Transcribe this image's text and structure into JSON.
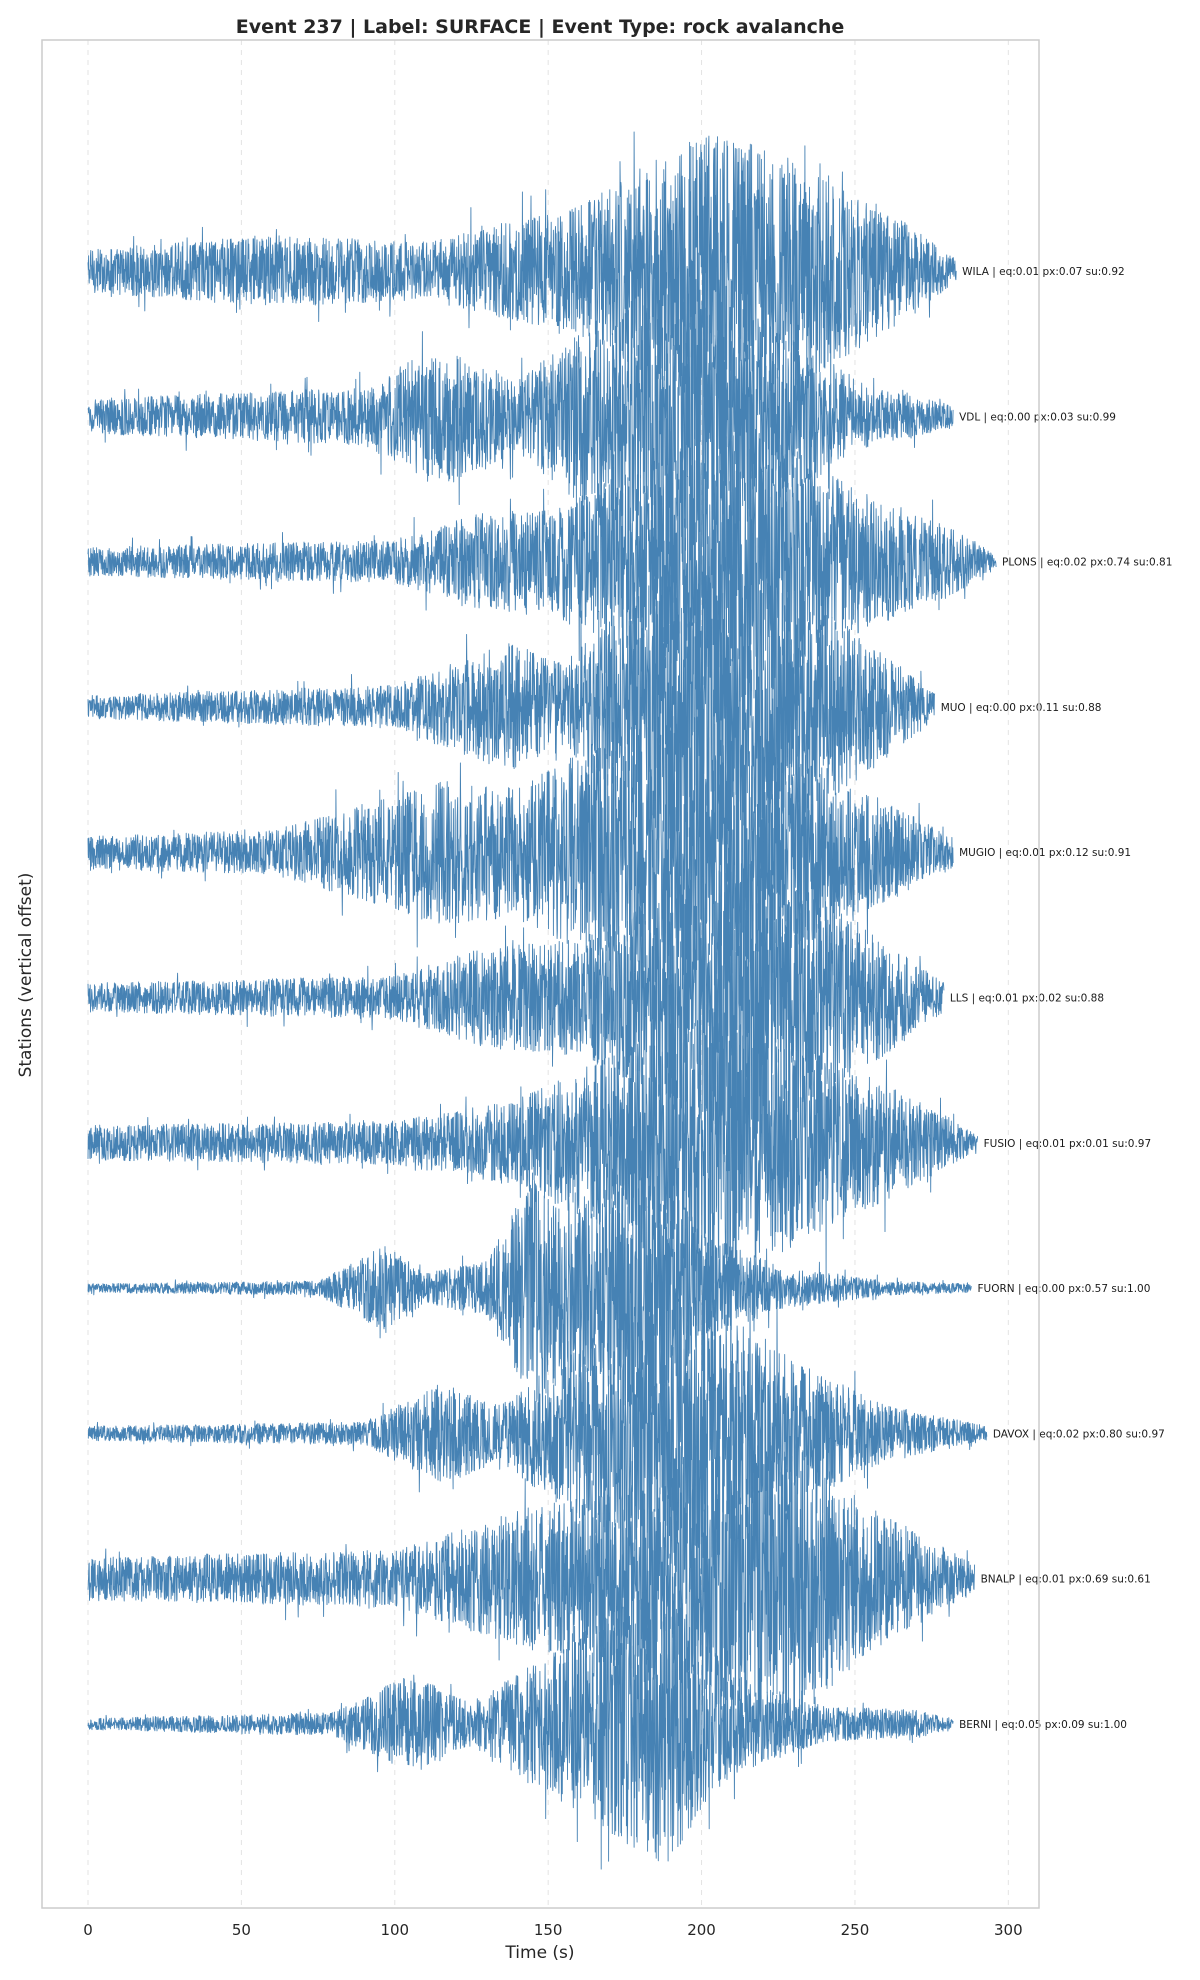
{
  "chart_data": {
    "type": "line",
    "title": "Event 237 | Label: SURFACE | Event Type: rock avalanche",
    "xlabel": "Time (s)",
    "ylabel": "Stations (vertical offset)",
    "xlim": [
      -15,
      310
    ],
    "xticks": [
      0,
      50,
      100,
      150,
      200,
      250,
      300
    ],
    "grid": "vertical dashed",
    "trace_color": "#4682b4",
    "series": [
      {
        "name": "WILA",
        "label": "WILA | eq:0.01 px:0.07 su:0.92",
        "x_end": 283,
        "envelope": [
          [
            0,
            0.15
          ],
          [
            60,
            0.25
          ],
          [
            110,
            0.2
          ],
          [
            160,
            0.45
          ],
          [
            203,
            1.0
          ],
          [
            230,
            0.8
          ],
          [
            262,
            0.4
          ],
          [
            283,
            0.08
          ]
        ]
      },
      {
        "name": "VDL",
        "label": "VDL | eq:0.00 px:0.03 su:0.99",
        "x_end": 282,
        "envelope": [
          [
            0,
            0.12
          ],
          [
            90,
            0.2
          ],
          [
            115,
            0.5
          ],
          [
            140,
            0.25
          ],
          [
            160,
            0.6
          ],
          [
            195,
            1.0
          ],
          [
            225,
            0.6
          ],
          [
            255,
            0.2
          ],
          [
            282,
            0.08
          ]
        ]
      },
      {
        "name": "PLONS",
        "label": "PLONS | eq:0.02 px:0.74 su:0.81",
        "x_end": 296,
        "envelope": [
          [
            0,
            0.1
          ],
          [
            100,
            0.15
          ],
          [
            128,
            0.35
          ],
          [
            150,
            0.35
          ],
          [
            180,
            0.7
          ],
          [
            215,
            1.0
          ],
          [
            250,
            0.5
          ],
          [
            280,
            0.25
          ],
          [
            296,
            0.05
          ]
        ]
      },
      {
        "name": "MUO",
        "label": "MUO | eq:0.00 px:0.11 su:0.88",
        "x_end": 276,
        "envelope": [
          [
            0,
            0.08
          ],
          [
            100,
            0.15
          ],
          [
            137,
            0.45
          ],
          [
            155,
            0.3
          ],
          [
            185,
            0.9
          ],
          [
            210,
            1.0
          ],
          [
            245,
            0.6
          ],
          [
            276,
            0.1
          ]
        ]
      },
      {
        "name": "MUGIO",
        "label": "MUGIO | eq:0.01 px:0.12 su:0.91",
        "x_end": 282,
        "envelope": [
          [
            0,
            0.12
          ],
          [
            60,
            0.15
          ],
          [
            115,
            0.5
          ],
          [
            140,
            0.45
          ],
          [
            170,
            0.8
          ],
          [
            200,
            1.0
          ],
          [
            230,
            0.7
          ],
          [
            260,
            0.35
          ],
          [
            282,
            0.1
          ]
        ]
      },
      {
        "name": "LLS",
        "label": "LLS | eq:0.01 px:0.02 su:0.88",
        "x_end": 279,
        "envelope": [
          [
            0,
            0.1
          ],
          [
            100,
            0.15
          ],
          [
            130,
            0.35
          ],
          [
            160,
            0.4
          ],
          [
            185,
            0.7
          ],
          [
            215,
            1.0
          ],
          [
            250,
            0.55
          ],
          [
            279,
            0.1
          ]
        ]
      },
      {
        "name": "FUSIO",
        "label": "FUSIO | eq:0.01 px:0.01 su:0.97",
        "x_end": 290,
        "envelope": [
          [
            0,
            0.12
          ],
          [
            100,
            0.15
          ],
          [
            140,
            0.3
          ],
          [
            170,
            0.6
          ],
          [
            205,
            1.0
          ],
          [
            240,
            0.6
          ],
          [
            275,
            0.25
          ],
          [
            290,
            0.05
          ]
        ]
      },
      {
        "name": "FUORN",
        "label": "FUORN | eq:0.00 px:0.57 su:1.00",
        "x_end": 288,
        "envelope": [
          [
            0,
            0.03
          ],
          [
            75,
            0.05
          ],
          [
            97,
            0.3
          ],
          [
            110,
            0.1
          ],
          [
            130,
            0.2
          ],
          [
            145,
            0.8
          ],
          [
            165,
            0.6
          ],
          [
            180,
            1.0
          ],
          [
            200,
            0.4
          ],
          [
            225,
            0.15
          ],
          [
            260,
            0.05
          ],
          [
            288,
            0.03
          ]
        ]
      },
      {
        "name": "DAVOX",
        "label": "DAVOX | eq:0.02 px:0.80 su:0.97",
        "x_end": 293,
        "envelope": [
          [
            0,
            0.05
          ],
          [
            90,
            0.08
          ],
          [
            115,
            0.35
          ],
          [
            135,
            0.2
          ],
          [
            165,
            0.7
          ],
          [
            200,
            1.0
          ],
          [
            230,
            0.5
          ],
          [
            260,
            0.2
          ],
          [
            293,
            0.05
          ]
        ]
      },
      {
        "name": "BNALP",
        "label": "BNALP | eq:0.01 px:0.69 su:0.61",
        "x_end": 289,
        "envelope": [
          [
            0,
            0.15
          ],
          [
            100,
            0.2
          ],
          [
            145,
            0.5
          ],
          [
            170,
            0.6
          ],
          [
            200,
            0.9
          ],
          [
            230,
            1.0
          ],
          [
            255,
            0.5
          ],
          [
            289,
            0.1
          ]
        ]
      },
      {
        "name": "BERNI",
        "label": "BERNI | eq:0.05 px:0.09 su:1.00",
        "x_end": 282,
        "envelope": [
          [
            0,
            0.04
          ],
          [
            80,
            0.08
          ],
          [
            105,
            0.35
          ],
          [
            125,
            0.15
          ],
          [
            155,
            0.55
          ],
          [
            188,
            1.0
          ],
          [
            210,
            0.35
          ],
          [
            240,
            0.12
          ],
          [
            270,
            0.1
          ],
          [
            282,
            0.03
          ]
        ]
      }
    ]
  }
}
